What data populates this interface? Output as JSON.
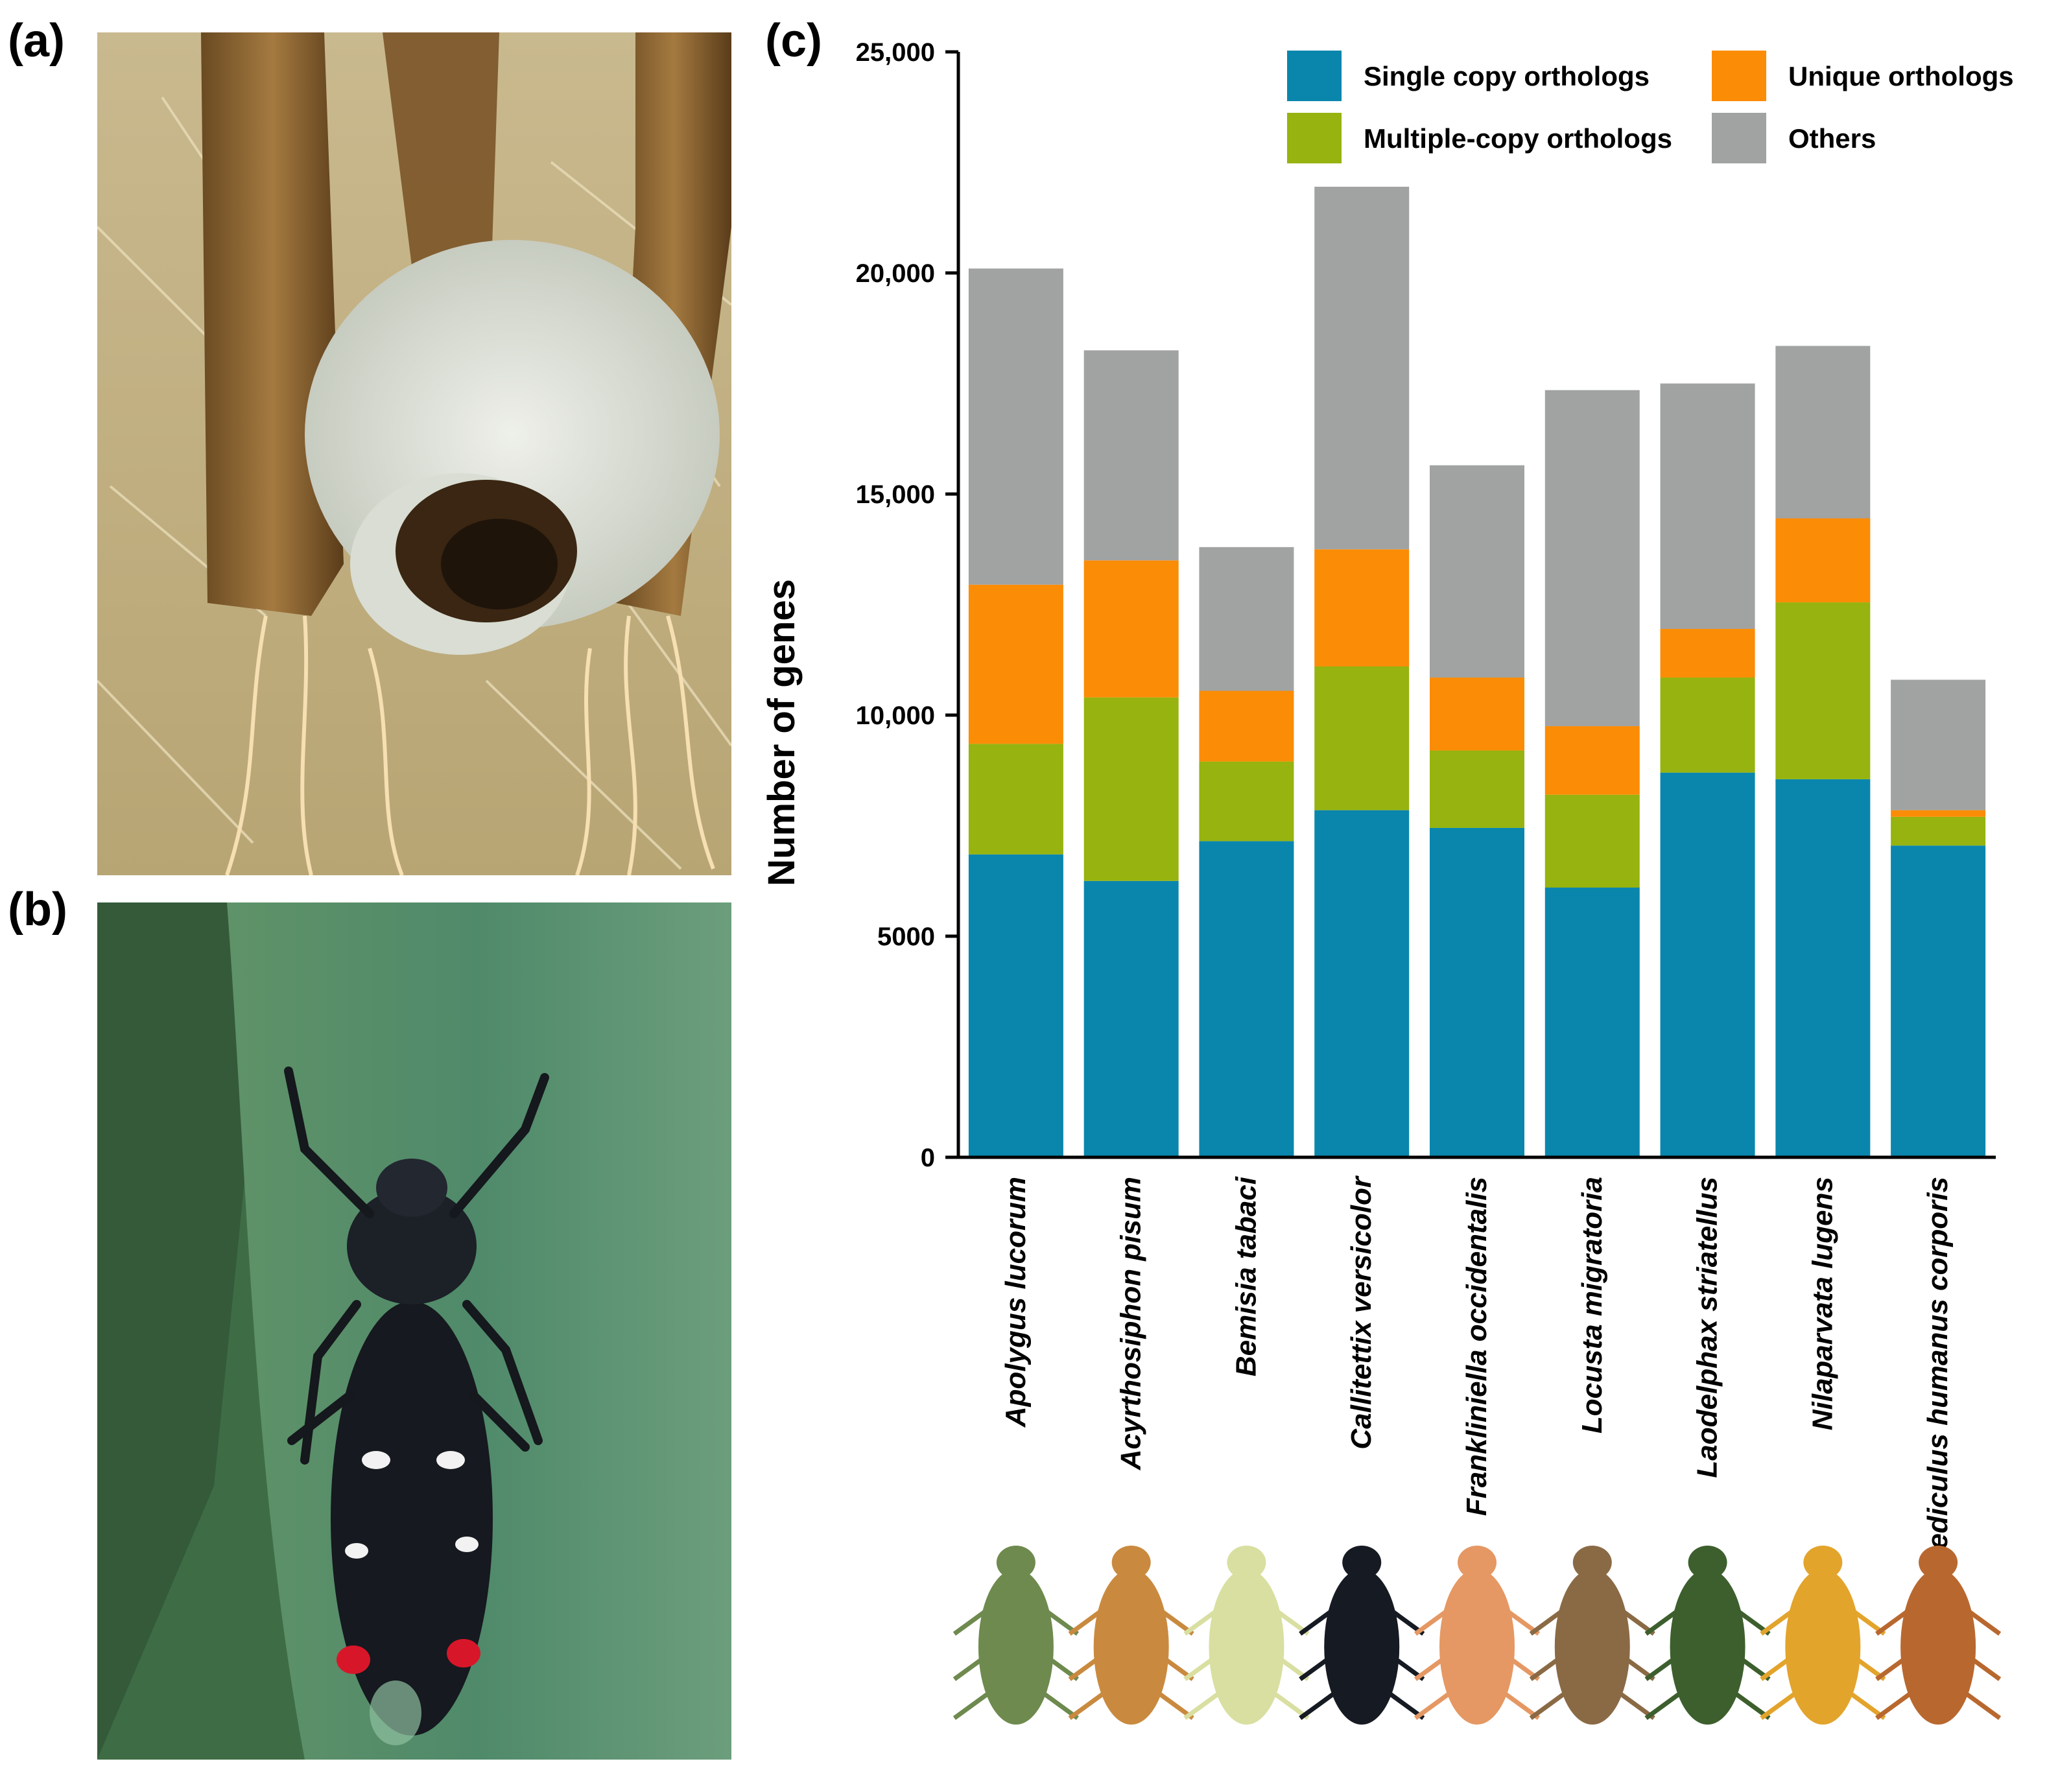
{
  "panels": {
    "a": "(a)",
    "b": "(b)",
    "c": "(c)"
  },
  "photos": {
    "a_desc_icon": "froghopper-nymph-spittle-photo-icon",
    "b_desc_icon": "adult-froghopper-on-leaf-photo-icon"
  },
  "chart_data": {
    "type": "bar",
    "stacked": true,
    "title": "",
    "xlabel": "",
    "ylabel": "Number of genes",
    "ylim": [
      0,
      25000
    ],
    "yticks": [
      0,
      5000,
      10000,
      15000,
      20000,
      25000
    ],
    "ytick_labels": [
      "0",
      "5000",
      "10,000",
      "15,000",
      "20,000",
      "25,000"
    ],
    "legend_position": "top-right",
    "categories": [
      "Apolygus lucorum",
      "Acyrthosiphon pisum",
      "Bemisia tabaci",
      "Callitettix versicolor",
      "Frankliniella occidentalis",
      "Locusta migratoria",
      "Laodelphax striatellus",
      "Nilaparvata lugens",
      "Pediculus humanus corporis"
    ],
    "series": [
      {
        "name": "Single copy orthologs",
        "color": "#0a86ad",
        "values": [
          6850,
          6250,
          7150,
          7850,
          7450,
          6100,
          8700,
          8550,
          7050
        ]
      },
      {
        "name": "Multiple-copy orthologs",
        "color": "#96b30f",
        "values": [
          2500,
          4150,
          1800,
          3250,
          1750,
          2100,
          2150,
          4000,
          650
        ]
      },
      {
        "name": "Unique orthologs",
        "color": "#fb8c06",
        "values": [
          3600,
          3100,
          1600,
          2650,
          1650,
          1550,
          1100,
          1900,
          150
        ]
      },
      {
        "name": "Others",
        "color": "#a1a3a2",
        "values": [
          7150,
          4750,
          3250,
          8200,
          4800,
          7600,
          5550,
          3900,
          2950
        ]
      }
    ],
    "legend_order": [
      0,
      2,
      1,
      3
    ]
  }
}
